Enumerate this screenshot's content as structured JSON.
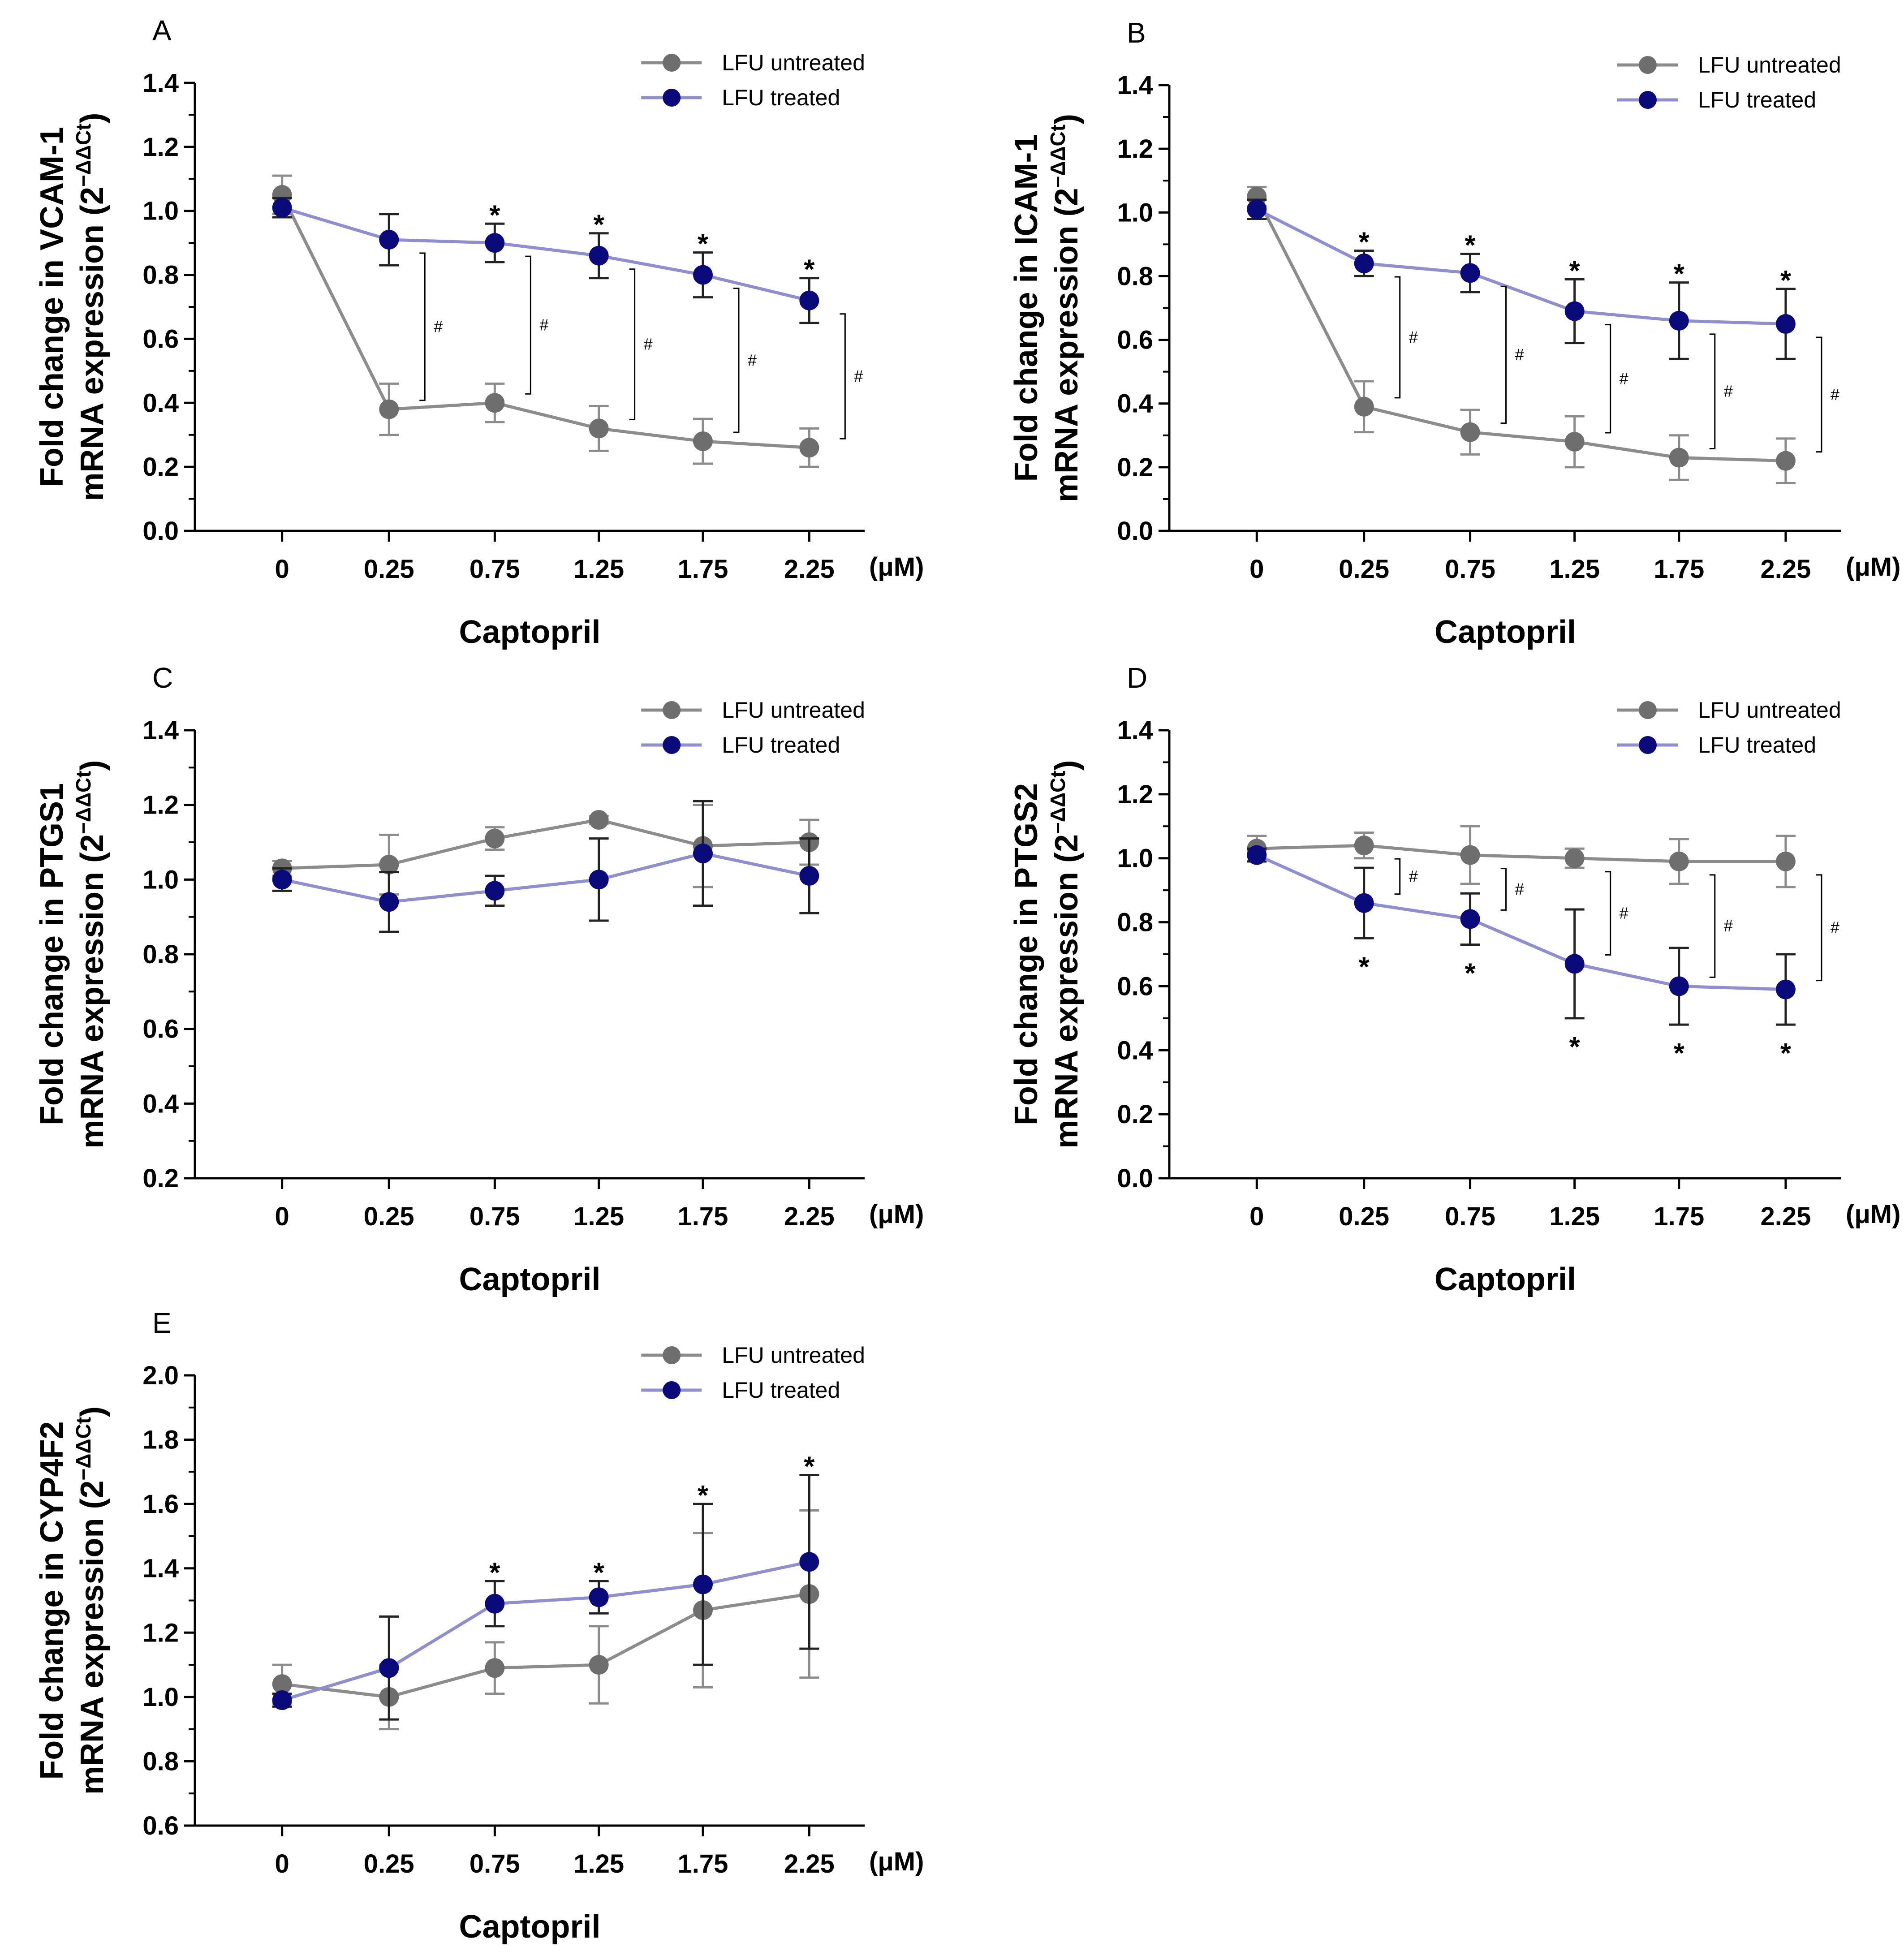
{
  "chart_data": [
    {
      "id": "A",
      "type": "line",
      "panel_label": "A",
      "title": "",
      "ylabel_line1": "Fold change in VCAM-1",
      "ylabel_line2": "mRNA expression (2",
      "ylabel_sup": "−ΔΔCt",
      "ylabel_close": ")",
      "xlabel": "Captopril",
      "x_unit": "(μM)",
      "categories": [
        "0",
        "0.25",
        "0.75",
        "1.25",
        "1.75",
        "2.25"
      ],
      "ylim": [
        0.0,
        1.4
      ],
      "yticks": [
        0.0,
        0.2,
        0.4,
        0.6,
        0.8,
        1.0,
        1.2,
        1.4
      ],
      "ytick_labels": [
        "0.0",
        "0.2",
        "0.4",
        "0.6",
        "0.8",
        "1.0",
        "1.2",
        "1.4"
      ],
      "legend_position": "top-right",
      "series": [
        {
          "name": "LFU untreated",
          "color": "#8c8c8c",
          "marker_color": "#6e6e6e",
          "values": [
            1.05,
            0.38,
            0.4,
            0.32,
            0.28,
            0.26
          ],
          "errors": [
            0.06,
            0.08,
            0.06,
            0.07,
            0.07,
            0.06
          ]
        },
        {
          "name": "LFU treated",
          "color": "#8f8fd0",
          "marker_color": "#0a0a7a",
          "values": [
            1.01,
            0.91,
            0.9,
            0.86,
            0.8,
            0.72
          ],
          "errors": [
            0.03,
            0.08,
            0.06,
            0.07,
            0.07,
            0.07
          ]
        }
      ],
      "star_above": true,
      "stars_at": [
        2,
        3,
        4,
        5
      ],
      "hash_at": [
        1,
        2,
        3,
        4,
        5
      ],
      "star_symbol": "*",
      "hash_symbol": "#"
    },
    {
      "id": "B",
      "type": "line",
      "panel_label": "B",
      "title": "",
      "ylabel_line1": "Fold change in ICAM-1",
      "ylabel_line2": "mRNA expression (2",
      "ylabel_sup": "−ΔΔCt",
      "ylabel_close": ")",
      "xlabel": "Captopril",
      "x_unit": "(μM)",
      "categories": [
        "0",
        "0.25",
        "0.75",
        "1.25",
        "1.75",
        "2.25"
      ],
      "ylim": [
        0.0,
        1.4
      ],
      "yticks": [
        0.0,
        0.2,
        0.4,
        0.6,
        0.8,
        1.0,
        1.2,
        1.4
      ],
      "ytick_labels": [
        "0.0",
        "0.2",
        "0.4",
        "0.6",
        "0.8",
        "1.0",
        "1.2",
        "1.4"
      ],
      "legend_position": "top-right",
      "series": [
        {
          "name": "LFU untreated",
          "color": "#8c8c8c",
          "marker_color": "#6e6e6e",
          "values": [
            1.05,
            0.39,
            0.31,
            0.28,
            0.23,
            0.22
          ],
          "errors": [
            0.03,
            0.08,
            0.07,
            0.08,
            0.07,
            0.07
          ]
        },
        {
          "name": "LFU treated",
          "color": "#8f8fd0",
          "marker_color": "#0a0a7a",
          "values": [
            1.01,
            0.84,
            0.81,
            0.69,
            0.66,
            0.65
          ],
          "errors": [
            0.03,
            0.04,
            0.06,
            0.1,
            0.12,
            0.11
          ]
        }
      ],
      "star_above": true,
      "stars_at": [
        1,
        2,
        3,
        4,
        5
      ],
      "hash_at": [
        1,
        2,
        3,
        4,
        5
      ],
      "star_symbol": "*",
      "hash_symbol": "#"
    },
    {
      "id": "C",
      "type": "line",
      "panel_label": "C",
      "title": "",
      "ylabel_line1": "Fold change in PTGS1",
      "ylabel_line2": "mRNA expression (2",
      "ylabel_sup": "−ΔΔCt",
      "ylabel_close": ")",
      "xlabel": "Captopril",
      "x_unit": "(μM)",
      "categories": [
        "0",
        "0.25",
        "0.75",
        "1.25",
        "1.75",
        "2.25"
      ],
      "ylim": [
        0.2,
        1.4
      ],
      "yticks": [
        0.2,
        0.4,
        0.6,
        0.8,
        1.0,
        1.2,
        1.4
      ],
      "ytick_labels": [
        "0.2",
        "0.4",
        "0.6",
        "0.8",
        "1.0",
        "1.2",
        "1.4"
      ],
      "legend_position": "top-right",
      "series": [
        {
          "name": "LFU untreated",
          "color": "#8c8c8c",
          "marker_color": "#6e6e6e",
          "values": [
            1.03,
            1.04,
            1.11,
            1.16,
            1.09,
            1.1
          ],
          "errors": [
            0.02,
            0.08,
            0.03,
            0.01,
            0.11,
            0.06
          ]
        },
        {
          "name": "LFU treated",
          "color": "#8f8fd0",
          "marker_color": "#0a0a7a",
          "values": [
            1.0,
            0.94,
            0.97,
            1.0,
            1.07,
            1.01
          ],
          "errors": [
            0.03,
            0.08,
            0.04,
            0.11,
            0.14,
            0.1
          ]
        }
      ],
      "star_above": true,
      "stars_at": [],
      "hash_at": [],
      "star_symbol": "*",
      "hash_symbol": "#"
    },
    {
      "id": "D",
      "type": "line",
      "panel_label": "D",
      "title": "",
      "ylabel_line1": "Fold change in PTGS2",
      "ylabel_line2": "mRNA expression (2",
      "ylabel_sup": "−ΔΔCt",
      "ylabel_close": ")",
      "xlabel": "Captopril",
      "x_unit": "(μM)",
      "categories": [
        "0",
        "0.25",
        "0.75",
        "1.25",
        "1.75",
        "2.25"
      ],
      "ylim": [
        0.0,
        1.4
      ],
      "yticks": [
        0.0,
        0.2,
        0.4,
        0.6,
        0.8,
        1.0,
        1.2,
        1.4
      ],
      "ytick_labels": [
        "0.0",
        "0.2",
        "0.4",
        "0.6",
        "0.8",
        "1.0",
        "1.2",
        "1.4"
      ],
      "legend_position": "top-right",
      "series": [
        {
          "name": "LFU untreated",
          "color": "#8c8c8c",
          "marker_color": "#6e6e6e",
          "values": [
            1.03,
            1.04,
            1.01,
            1.0,
            0.99,
            0.99
          ],
          "errors": [
            0.04,
            0.04,
            0.09,
            0.03,
            0.07,
            0.08
          ]
        },
        {
          "name": "LFU treated",
          "color": "#8f8fd0",
          "marker_color": "#0a0a7a",
          "values": [
            1.01,
            0.86,
            0.81,
            0.67,
            0.6,
            0.59
          ],
          "errors": [
            0.02,
            0.11,
            0.08,
            0.17,
            0.12,
            0.11
          ]
        }
      ],
      "star_above": false,
      "stars_at": [
        1,
        2,
        3,
        4,
        5
      ],
      "hash_at": [
        1,
        2,
        3,
        4,
        5
      ],
      "star_symbol": "*",
      "hash_symbol": "#"
    },
    {
      "id": "E",
      "type": "line",
      "panel_label": "E",
      "title": "",
      "ylabel_line1": "Fold change in CYP4F2",
      "ylabel_line2": "mRNA expression (2",
      "ylabel_sup": "−ΔΔCt",
      "ylabel_close": ")",
      "xlabel": "Captopril",
      "x_unit": "(μM)",
      "categories": [
        "0",
        "0.25",
        "0.75",
        "1.25",
        "1.75",
        "2.25"
      ],
      "ylim": [
        0.6,
        2.0
      ],
      "yticks": [
        0.6,
        0.8,
        1.0,
        1.2,
        1.4,
        1.6,
        1.8,
        2.0
      ],
      "ytick_labels": [
        "0.6",
        "0.8",
        "1.0",
        "1.2",
        "1.4",
        "1.6",
        "1.8",
        "2.0"
      ],
      "legend_position": "top-right",
      "series": [
        {
          "name": "LFU untreated",
          "color": "#8c8c8c",
          "marker_color": "#6e6e6e",
          "values": [
            1.04,
            1.0,
            1.09,
            1.1,
            1.27,
            1.32
          ],
          "errors": [
            0.06,
            0.1,
            0.08,
            0.12,
            0.24,
            0.26
          ]
        },
        {
          "name": "LFU treated",
          "color": "#8f8fd0",
          "marker_color": "#0a0a7a",
          "values": [
            0.99,
            1.09,
            1.29,
            1.31,
            1.35,
            1.42
          ],
          "errors": [
            0.02,
            0.16,
            0.07,
            0.05,
            0.25,
            0.27
          ]
        }
      ],
      "star_above": true,
      "stars_at": [
        2,
        3,
        4,
        5
      ],
      "hash_at": [],
      "star_symbol": "*",
      "hash_symbol": "#"
    }
  ]
}
